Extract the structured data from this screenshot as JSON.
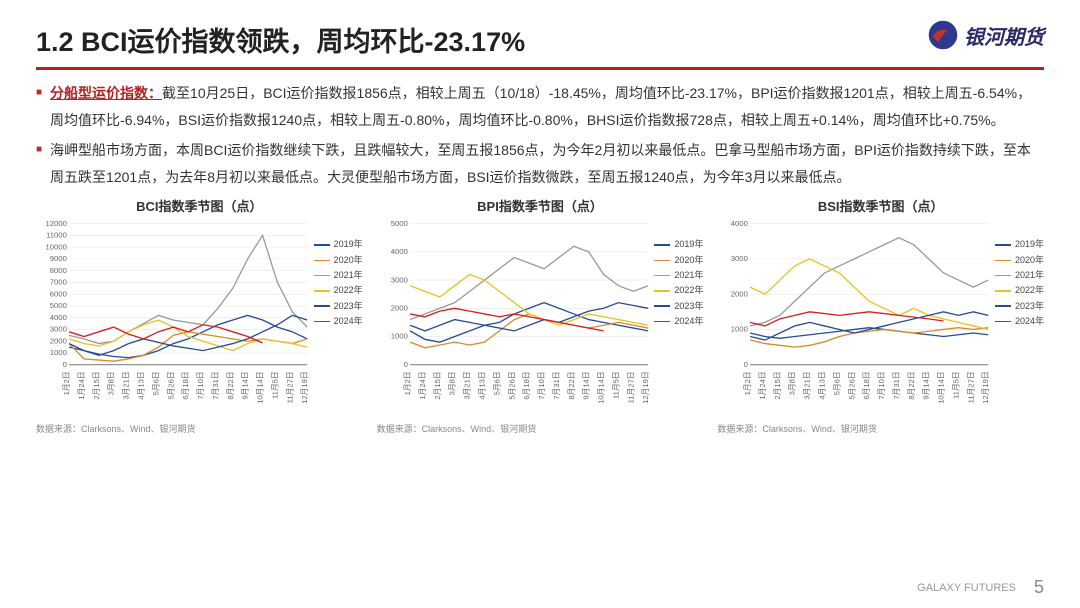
{
  "header": {
    "title": "1.2 BCI运价指数领跌，周均环比-23.17%",
    "logo_text": "银河期货"
  },
  "bullets": [
    {
      "lead": "分船型运价指数：",
      "text": "截至10月25日，BCI运价指数报1856点，相较上周五（10/18）-18.45%，周均值环比-23.17%，BPI运价指数报1201点，相较上周五-6.54%，周均值环比-6.94%，BSI运价指数报1240点，相较上周五-0.80%，周均值环比-0.80%，BHSI运价指数报728点，相较上周五+0.14%，周均值环比+0.75%。"
    },
    {
      "lead": "",
      "text": "海岬型船市场方面，本周BCI运价指数继续下跌，且跌幅较大，至周五报1856点，为今年2月初以来最低点。巴拿马型船市场方面，BPI运价指数持续下跌，至本周五跌至1201点，为去年8月初以来最低点。大灵便型船市场方面，BSI运价指数微跌，至周五报1240点，为今年3月以来最低点。"
    }
  ],
  "legend_years": [
    {
      "label": "2019年",
      "color": "#1f4e9c"
    },
    {
      "label": "2020年",
      "color": "#d98a2b"
    },
    {
      "label": "2021年",
      "color": "#9a9a9a"
    },
    {
      "label": "2022年",
      "color": "#e6c226"
    },
    {
      "label": "2023年",
      "color": "#2a4b8d"
    },
    {
      "label": "2024年",
      "color": "#d62020"
    }
  ],
  "x_labels": [
    "1月2日",
    "1月24日",
    "2月15日",
    "3月8日",
    "3月21日",
    "4月13日",
    "5月6日",
    "5月26日",
    "6月18日",
    "7月10日",
    "7月31日",
    "8月22日",
    "9月14日",
    "10月14日",
    "11月5日",
    "11月27日",
    "12月19日"
  ],
  "source_text": "数据来源：Clarksons、Wind、银河期货",
  "footer": {
    "brand": "GALAXY FUTURES",
    "page": "5"
  },
  "charts": [
    {
      "title": "BCI指数季节图（点）",
      "ylim": [
        0,
        12000
      ],
      "ytick_step": 1000,
      "colors_ref": "legend_years",
      "grid_color": "#e6e6e6",
      "axis_color": "#888",
      "label_fontsize": 7,
      "series": {
        "2019年": [
          1500,
          1200,
          900,
          700,
          600,
          800,
          1200,
          1800,
          2200,
          2800,
          3400,
          3800,
          4200,
          3800,
          3200,
          2800,
          2200
        ],
        "2020年": [
          1800,
          500,
          400,
          300,
          500,
          800,
          1500,
          2500,
          2800,
          2600,
          2400,
          2200,
          2000,
          2200,
          2000,
          1800,
          2200
        ],
        "2021年": [
          2500,
          2200,
          1800,
          2000,
          2800,
          3500,
          4200,
          3800,
          3600,
          3400,
          4800,
          6500,
          9000,
          11000,
          7000,
          4500,
          3200
        ],
        "2022年": [
          2200,
          1800,
          1600,
          2000,
          2800,
          3400,
          3800,
          3200,
          2400,
          2000,
          1600,
          1200,
          1800,
          2200,
          2000,
          1800,
          1500
        ],
        "2023年": [
          1800,
          1200,
          800,
          1200,
          1800,
          2200,
          1900,
          1600,
          1400,
          1200,
          1500,
          1800,
          2200,
          2800,
          3400,
          4200,
          3800
        ],
        "2024年": [
          2800,
          2400,
          2800,
          3200,
          2600,
          2200,
          2800,
          3200,
          2800,
          3400,
          3200,
          2800,
          2400,
          1856
        ]
      }
    },
    {
      "title": "BPI指数季节图（点）",
      "ylim": [
        0,
        5000
      ],
      "ytick_step": 1000,
      "colors_ref": "legend_years",
      "grid_color": "#e6e6e6",
      "axis_color": "#888",
      "label_fontsize": 7,
      "series": {
        "2019年": [
          1200,
          900,
          800,
          1000,
          1200,
          1400,
          1500,
          1800,
          2000,
          2200,
          2000,
          1800,
          1600,
          1500,
          1400,
          1300,
          1200
        ],
        "2020年": [
          800,
          600,
          700,
          800,
          700,
          800,
          1200,
          1600,
          1800,
          1600,
          1500,
          1400,
          1300,
          1400,
          1500,
          1400,
          1300
        ],
        "2021年": [
          1600,
          1800,
          2000,
          2200,
          2600,
          3000,
          3400,
          3800,
          3600,
          3400,
          3800,
          4200,
          4000,
          3200,
          2800,
          2600,
          2800
        ],
        "2022年": [
          2800,
          2600,
          2400,
          2800,
          3200,
          3000,
          2600,
          2200,
          1800,
          1600,
          1400,
          1600,
          1800,
          1700,
          1600,
          1500,
          1400
        ],
        "2023年": [
          1400,
          1200,
          1400,
          1600,
          1500,
          1400,
          1300,
          1200,
          1400,
          1600,
          1500,
          1700,
          1900,
          2000,
          2200,
          2100,
          2000
        ],
        "2024年": [
          1800,
          1700,
          1900,
          2000,
          1900,
          1800,
          1700,
          1800,
          1700,
          1600,
          1500,
          1400,
          1300,
          1201
        ]
      }
    },
    {
      "title": "BSI指数季节图（点）",
      "ylim": [
        0,
        4000
      ],
      "ytick_step": 1000,
      "colors_ref": "legend_years",
      "grid_color": "#e6e6e6",
      "axis_color": "#888",
      "label_fontsize": 7,
      "series": {
        "2019年": [
          900,
          800,
          750,
          800,
          850,
          900,
          950,
          1000,
          1050,
          1000,
          950,
          900,
          850,
          800,
          850,
          900,
          850
        ],
        "2020年": [
          700,
          600,
          550,
          500,
          550,
          650,
          800,
          900,
          950,
          1000,
          950,
          900,
          950,
          1000,
          1050,
          1000,
          1050
        ],
        "2021年": [
          1100,
          1200,
          1400,
          1800,
          2200,
          2600,
          2800,
          3000,
          3200,
          3400,
          3600,
          3400,
          3000,
          2600,
          2400,
          2200,
          2400
        ],
        "2022年": [
          2200,
          2000,
          2400,
          2800,
          3000,
          2800,
          2600,
          2200,
          1800,
          1600,
          1400,
          1600,
          1400,
          1300,
          1200,
          1100,
          1000
        ],
        "2023年": [
          800,
          700,
          900,
          1100,
          1200,
          1100,
          1000,
          900,
          1000,
          1100,
          1200,
          1300,
          1400,
          1500,
          1400,
          1500,
          1400
        ],
        "2024年": [
          1200,
          1100,
          1300,
          1400,
          1500,
          1450,
          1400,
          1450,
          1500,
          1450,
          1400,
          1350,
          1300,
          1240
        ]
      }
    }
  ]
}
